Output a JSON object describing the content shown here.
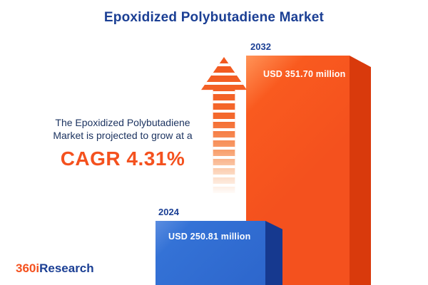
{
  "header": {
    "title": "Epoxidized Polybutadiene Market"
  },
  "promo": {
    "line1": "The Epoxidized Polybutadiene",
    "line2": "Market is projected to grow at a",
    "cagr": "CAGR 4.31%"
  },
  "logo": {
    "part1": "360i",
    "part2": "Research"
  },
  "chart_data": {
    "type": "bar",
    "title": "Epoxidized Polybutadiene Market",
    "categories": [
      "2024",
      "2032"
    ],
    "values": [
      250.81,
      351.7
    ],
    "value_labels": [
      "USD 250.81 million",
      "USD 351.70 million"
    ],
    "unit": "USD million",
    "cagr_percent": 4.31,
    "xlabel": "",
    "ylabel": "",
    "legend": "none",
    "grid": false,
    "colors": {
      "bar_2024_front": "#2d66cc",
      "bar_2024_side": "#16398f",
      "bar_2032_front": "#f4511e",
      "bar_2032_side": "#d93a0c",
      "accent_orange": "#f4511e",
      "navy_text": "#1b3f94"
    }
  }
}
